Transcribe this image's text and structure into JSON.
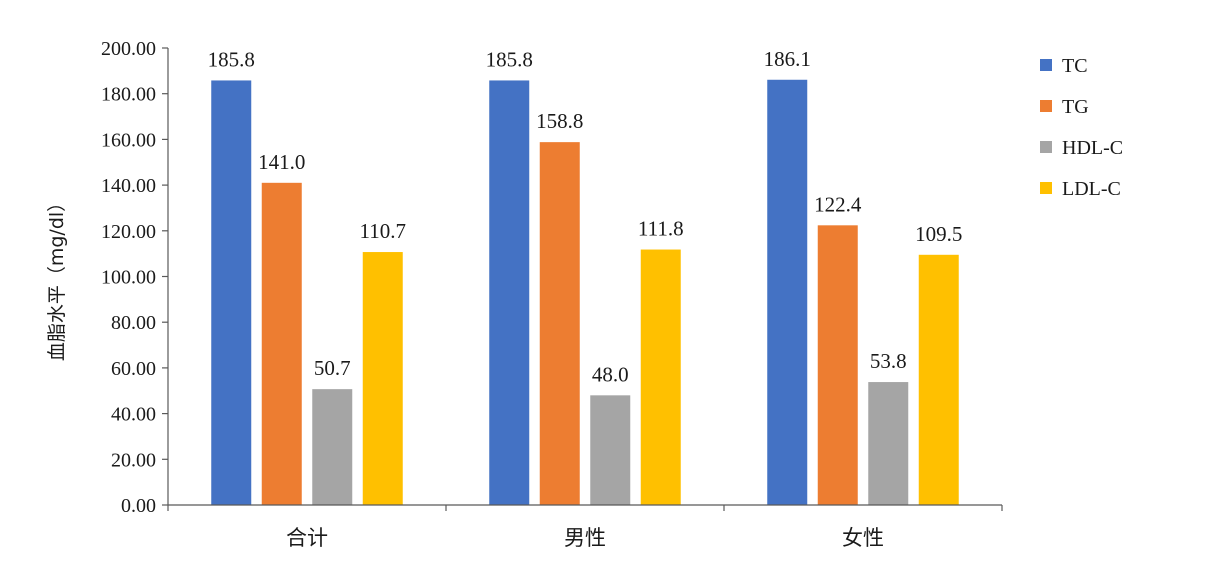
{
  "chart_data": {
    "type": "bar",
    "title": "",
    "xlabel": "",
    "ylabel": "血脂水平（mg/dl）",
    "categories": [
      "合计",
      "男性",
      "女性"
    ],
    "series": [
      {
        "name": "TC",
        "color": "#4472C4",
        "values": [
          185.8,
          185.8,
          186.1
        ],
        "labels": [
          "185.8",
          "185.8",
          "186.1"
        ]
      },
      {
        "name": "TG",
        "color": "#ED7D31",
        "values": [
          141.0,
          158.8,
          122.4
        ],
        "labels": [
          "141.0",
          "158.8",
          "122.4"
        ]
      },
      {
        "name": "HDL-C",
        "color": "#A5A5A5",
        "values": [
          50.7,
          48.0,
          53.8
        ],
        "labels": [
          "50.7",
          "48.0",
          "53.8"
        ]
      },
      {
        "name": "LDL-C",
        "color": "#FFC000",
        "values": [
          110.7,
          111.8,
          109.5
        ],
        "labels": [
          "110.7",
          "111.8",
          "109.5"
        ]
      }
    ],
    "ylim": [
      0,
      200
    ],
    "yticks": [
      "0.00",
      "20.00",
      "40.00",
      "60.00",
      "80.00",
      "100.00",
      "120.00",
      "140.00",
      "160.00",
      "180.00",
      "200.00"
    ],
    "grid": false,
    "legend": "right"
  }
}
